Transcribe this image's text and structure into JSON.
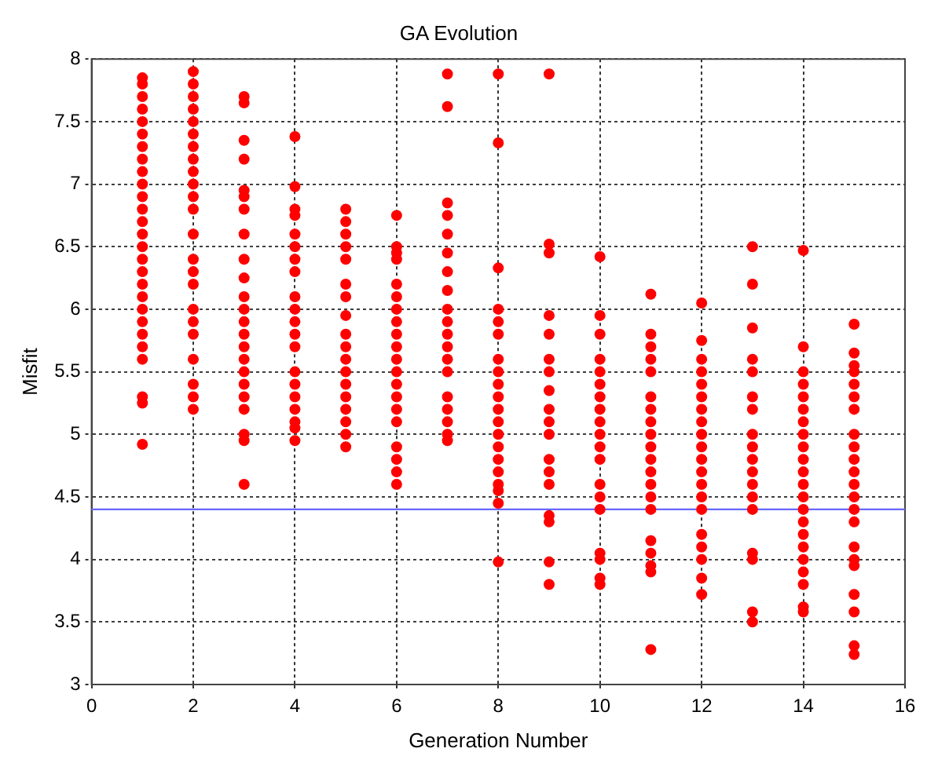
{
  "chart_data": {
    "type": "scatter",
    "title": "GA Evolution",
    "xlabel": "Generation Number",
    "ylabel": "Misfit",
    "xlim": [
      0,
      16
    ],
    "xticks": [
      0,
      2,
      4,
      6,
      8,
      10,
      12,
      14,
      16
    ],
    "ylim": [
      3,
      8
    ],
    "yticks": [
      3,
      3.5,
      4,
      4.5,
      5,
      5.5,
      6,
      6.5,
      7,
      7.5,
      8
    ],
    "grid": true,
    "legend": false,
    "marker": "circle",
    "ref_lines": [
      {
        "axis": "y",
        "value": 4.4,
        "color": "#6666ff",
        "line_style": "solid"
      }
    ],
    "series": [
      {
        "color": "#ff0000",
        "x": [
          1,
          1,
          1,
          1,
          1,
          1,
          1,
          1,
          1,
          1,
          1,
          1,
          1,
          1,
          1,
          1,
          1,
          1,
          1,
          1,
          1,
          1,
          1,
          1,
          1,
          1,
          1
        ],
        "values": [
          7.85,
          7.8,
          7.7,
          7.6,
          7.5,
          7.4,
          7.3,
          7.2,
          7.1,
          7.0,
          6.9,
          6.8,
          6.7,
          6.6,
          6.5,
          6.4,
          6.3,
          6.2,
          6.1,
          6.0,
          5.9,
          5.8,
          5.7,
          5.6,
          5.3,
          5.25,
          4.92
        ]
      },
      {
        "color": "#ff0000",
        "x": [
          2,
          2,
          2,
          2,
          2,
          2,
          2,
          2,
          2,
          2,
          2,
          2,
          2,
          2,
          2,
          2,
          2,
          2,
          2,
          2,
          2,
          2,
          2
        ],
        "values": [
          7.9,
          7.8,
          7.7,
          7.6,
          7.5,
          7.4,
          7.3,
          7.2,
          7.1,
          7.0,
          6.9,
          6.8,
          6.6,
          6.4,
          6.3,
          6.2,
          6.0,
          5.9,
          5.8,
          5.6,
          5.4,
          5.3,
          5.2
        ]
      },
      {
        "color": "#ff0000",
        "x": [
          3,
          3,
          3,
          3,
          3,
          3,
          3,
          3,
          3,
          3,
          3,
          3,
          3,
          3,
          3,
          3,
          3,
          3,
          3,
          3,
          3,
          3,
          3
        ],
        "values": [
          7.7,
          7.65,
          7.35,
          7.2,
          6.95,
          6.9,
          6.8,
          6.6,
          6.4,
          6.25,
          6.1,
          6.0,
          5.9,
          5.8,
          5.7,
          5.6,
          5.5,
          5.4,
          5.3,
          5.2,
          5.0,
          4.95,
          4.6
        ]
      },
      {
        "color": "#ff0000",
        "x": [
          4,
          4,
          4,
          4,
          4,
          4,
          4,
          4,
          4,
          4,
          4,
          4,
          4,
          4,
          4,
          4,
          4,
          4,
          4,
          4
        ],
        "values": [
          7.38,
          6.98,
          6.8,
          6.75,
          6.6,
          6.5,
          6.4,
          6.3,
          6.1,
          6.0,
          5.9,
          5.8,
          5.7,
          5.5,
          5.4,
          5.3,
          5.2,
          5.1,
          5.05,
          4.95
        ]
      },
      {
        "color": "#ff0000",
        "x": [
          5,
          5,
          5,
          5,
          5,
          5,
          5,
          5,
          5,
          5,
          5,
          5,
          5,
          5,
          5,
          5,
          5,
          5
        ],
        "values": [
          6.8,
          6.7,
          6.6,
          6.5,
          6.4,
          6.2,
          6.1,
          5.95,
          5.8,
          5.7,
          5.6,
          5.5,
          5.4,
          5.3,
          5.2,
          5.1,
          5.0,
          4.9
        ]
      },
      {
        "color": "#ff0000",
        "x": [
          6,
          6,
          6,
          6,
          6,
          6,
          6,
          6,
          6,
          6,
          6,
          6,
          6,
          6,
          6,
          6,
          6,
          6,
          6,
          6
        ],
        "values": [
          6.75,
          6.5,
          6.45,
          6.4,
          6.2,
          6.1,
          6.0,
          5.9,
          5.8,
          5.7,
          5.6,
          5.5,
          5.4,
          5.3,
          5.2,
          5.1,
          4.9,
          4.8,
          4.7,
          4.6
        ]
      },
      {
        "color": "#ff0000",
        "x": [
          7,
          7,
          7,
          7,
          7,
          7,
          7,
          7,
          7,
          7,
          7,
          7,
          7,
          7,
          7,
          7,
          7,
          7,
          7
        ],
        "values": [
          7.88,
          7.62,
          6.85,
          6.75,
          6.6,
          6.45,
          6.3,
          6.15,
          6.0,
          5.9,
          5.8,
          5.7,
          5.6,
          5.5,
          5.3,
          5.2,
          5.1,
          5.0,
          4.95
        ]
      },
      {
        "color": "#ff0000",
        "x": [
          8,
          8,
          8,
          8,
          8,
          8,
          8,
          8,
          8,
          8,
          8,
          8,
          8,
          8,
          8,
          8,
          8,
          8,
          8,
          8
        ],
        "values": [
          7.88,
          7.33,
          6.33,
          6.0,
          5.9,
          5.8,
          5.6,
          5.5,
          5.4,
          5.3,
          5.2,
          5.1,
          5.0,
          4.9,
          4.8,
          4.7,
          4.6,
          4.55,
          4.45,
          3.98
        ]
      },
      {
        "color": "#ff0000",
        "x": [
          9,
          9,
          9,
          9,
          9,
          9,
          9,
          9,
          9,
          9,
          9,
          9,
          9,
          9,
          9,
          9,
          9,
          9
        ],
        "values": [
          7.88,
          6.52,
          6.45,
          5.95,
          5.8,
          5.6,
          5.5,
          5.35,
          5.2,
          5.1,
          5.0,
          4.8,
          4.7,
          4.6,
          4.35,
          4.3,
          3.98,
          3.8
        ]
      },
      {
        "color": "#ff0000",
        "x": [
          10,
          10,
          10,
          10,
          10,
          10,
          10,
          10,
          10,
          10,
          10,
          10,
          10,
          10,
          10,
          10,
          10,
          10,
          10
        ],
        "values": [
          6.42,
          5.95,
          5.8,
          5.6,
          5.5,
          5.4,
          5.3,
          5.2,
          5.1,
          5.0,
          4.9,
          4.8,
          4.6,
          4.5,
          4.4,
          4.05,
          4.0,
          3.85,
          3.8
        ]
      },
      {
        "color": "#ff0000",
        "x": [
          11,
          11,
          11,
          11,
          11,
          11,
          11,
          11,
          11,
          11,
          11,
          11,
          11,
          11,
          11,
          11,
          11,
          11,
          11,
          11
        ],
        "values": [
          6.12,
          5.8,
          5.7,
          5.6,
          5.5,
          5.3,
          5.2,
          5.1,
          5.0,
          4.9,
          4.8,
          4.7,
          4.6,
          4.5,
          4.4,
          4.15,
          4.05,
          3.95,
          3.9,
          3.28
        ]
      },
      {
        "color": "#ff0000",
        "x": [
          12,
          12,
          12,
          12,
          12,
          12,
          12,
          12,
          12,
          12,
          12,
          12,
          12,
          12,
          12,
          12,
          12,
          12,
          12,
          12
        ],
        "values": [
          6.05,
          5.75,
          5.6,
          5.5,
          5.4,
          5.3,
          5.2,
          5.1,
          5.0,
          4.9,
          4.8,
          4.7,
          4.6,
          4.5,
          4.4,
          4.2,
          4.1,
          4.0,
          3.85,
          3.72
        ]
      },
      {
        "color": "#ff0000",
        "x": [
          13,
          13,
          13,
          13,
          13,
          13,
          13,
          13,
          13,
          13,
          13,
          13,
          13,
          13,
          13,
          13,
          13,
          13
        ],
        "values": [
          6.5,
          6.2,
          5.85,
          5.6,
          5.5,
          5.3,
          5.2,
          5.0,
          4.9,
          4.8,
          4.7,
          4.6,
          4.5,
          4.4,
          4.05,
          4.0,
          3.58,
          3.5
        ]
      },
      {
        "color": "#ff0000",
        "x": [
          14,
          14,
          14,
          14,
          14,
          14,
          14,
          14,
          14,
          14,
          14,
          14,
          14,
          14,
          14,
          14,
          14,
          14,
          14,
          14,
          14,
          14
        ],
        "values": [
          6.47,
          5.7,
          5.5,
          5.4,
          5.3,
          5.2,
          5.1,
          5.0,
          4.9,
          4.8,
          4.7,
          4.6,
          4.5,
          4.4,
          4.3,
          4.2,
          4.1,
          4.0,
          3.9,
          3.8,
          3.62,
          3.58
        ]
      },
      {
        "color": "#ff0000",
        "x": [
          15,
          15,
          15,
          15,
          15,
          15,
          15,
          15,
          15,
          15,
          15,
          15,
          15,
          15,
          15,
          15,
          15,
          15,
          15,
          15,
          15,
          15
        ],
        "values": [
          5.88,
          5.65,
          5.55,
          5.5,
          5.4,
          5.3,
          5.2,
          5.0,
          4.9,
          4.8,
          4.7,
          4.6,
          4.5,
          4.4,
          4.3,
          4.1,
          4.0,
          3.95,
          3.72,
          3.58,
          3.31,
          3.24
        ]
      }
    ]
  }
}
